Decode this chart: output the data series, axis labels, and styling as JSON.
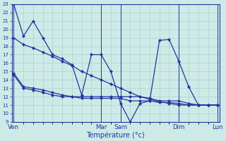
{
  "background_color": "#ceeae7",
  "grid_color": "#a8cbc8",
  "line_color": "#2035a0",
  "marker": "D",
  "xlabel": "Température (°c)",
  "ylim": [
    9,
    23
  ],
  "yticks": [
    9,
    10,
    11,
    12,
    13,
    14,
    15,
    16,
    17,
    18,
    19,
    20,
    21,
    22,
    23
  ],
  "day_labels": [
    "Ven",
    "Mar",
    "Sam",
    "Dim",
    "Lun"
  ],
  "day_x": [
    0,
    9,
    11,
    17,
    21
  ],
  "n_points": 22,
  "series": [
    [
      23,
      19.2,
      21.0,
      19.0,
      17.0,
      16.5,
      15.8,
      12.2,
      17.0,
      17.0,
      15.0,
      11.2,
      9.0,
      11.2,
      11.5,
      18.7,
      18.8,
      16.2,
      13.2,
      11.0,
      11.0,
      11.0
    ],
    [
      14.8,
      13.2,
      13.0,
      12.8,
      12.5,
      12.2,
      12.0,
      12.0,
      12.0,
      12.0,
      12.0,
      12.0,
      12.0,
      12.0,
      11.8,
      11.5,
      11.5,
      11.5,
      11.2,
      11.0,
      11.0,
      11.0
    ],
    [
      14.6,
      13.0,
      12.8,
      12.5,
      12.2,
      12.0,
      12.0,
      11.8,
      11.8,
      11.8,
      11.8,
      11.8,
      11.5,
      11.5,
      11.5,
      11.3,
      11.3,
      11.2,
      11.0,
      11.0,
      11.0,
      11.0
    ],
    [
      19.0,
      18.2,
      17.8,
      17.3,
      16.8,
      16.2,
      15.7,
      15.0,
      14.5,
      14.0,
      13.5,
      13.0,
      12.5,
      12.0,
      11.7,
      11.4,
      11.2,
      11.0,
      11.0,
      11.0,
      11.0,
      11.0
    ]
  ]
}
